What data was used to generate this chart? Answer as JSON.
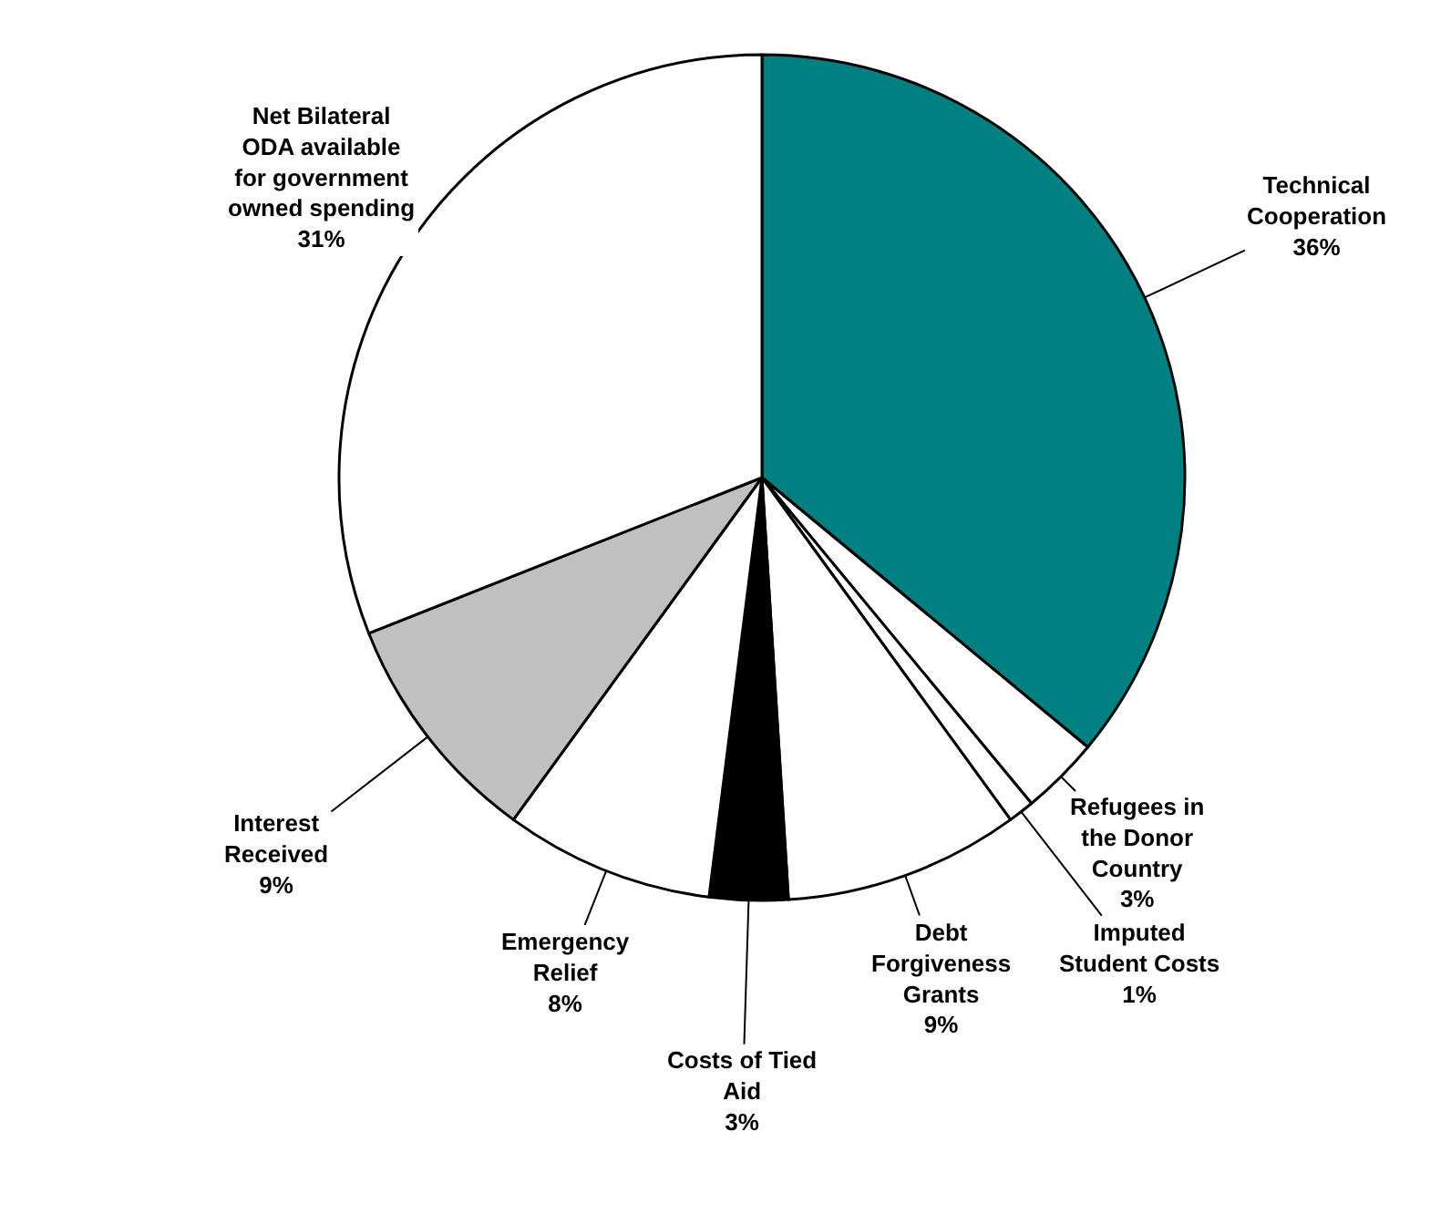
{
  "chart_data": {
    "type": "pie",
    "categories": [
      "Technical Cooperation",
      "Refugees in the Donor Country",
      "Imputed Student Costs",
      "Debt Forgiveness Grants",
      "Costs of Tied Aid",
      "Emergency Relief",
      "Interest Received",
      "Net Bilateral ODA available for government owned spending"
    ],
    "values": [
      36,
      3,
      1,
      9,
      3,
      8,
      9,
      31
    ],
    "value_labels": [
      "36%",
      "3%",
      "1%",
      "9%",
      "3%",
      "8%",
      "9%",
      "31%"
    ],
    "colors": [
      "#008080",
      "#ffffff",
      "#ffffff",
      "#ffffff",
      "#000000",
      "#ffffff",
      "#c0c0c0",
      "#ffffff"
    ],
    "legend": false
  }
}
